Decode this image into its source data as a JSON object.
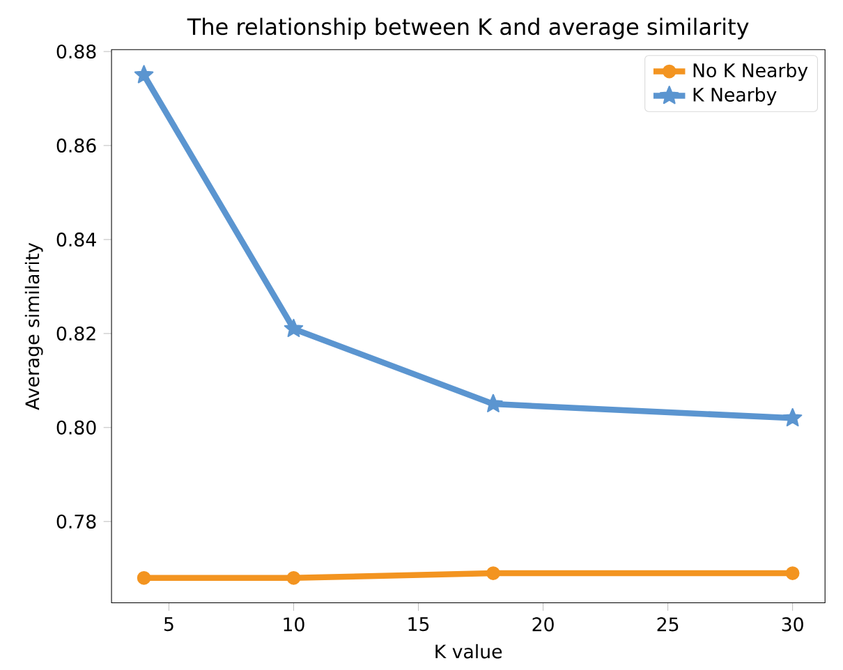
{
  "chart_data": {
    "type": "line",
    "title": "The relationship between K and average similarity",
    "xlabel": "K value",
    "ylabel": "Average similarity",
    "x": [
      4,
      10,
      18,
      30
    ],
    "series": [
      {
        "name": "No K Nearby",
        "color": "#f39420",
        "marker": "circle",
        "values": [
          0.768,
          0.768,
          0.769,
          0.769
        ]
      },
      {
        "name": "K Nearby",
        "color": "#5b95d0",
        "marker": "star",
        "values": [
          0.875,
          0.821,
          0.805,
          0.802
        ]
      }
    ],
    "xlim": [
      2.7,
      31.3
    ],
    "ylim": [
      0.7627,
      0.8804
    ],
    "xticks": [
      5,
      10,
      15,
      20,
      25,
      30
    ],
    "yticks": [
      0.78,
      {
        "value": 0.8,
        "label": "0.80"
      },
      0.82,
      0.84,
      0.86,
      0.88
    ],
    "legend": "top right",
    "grid": false
  }
}
